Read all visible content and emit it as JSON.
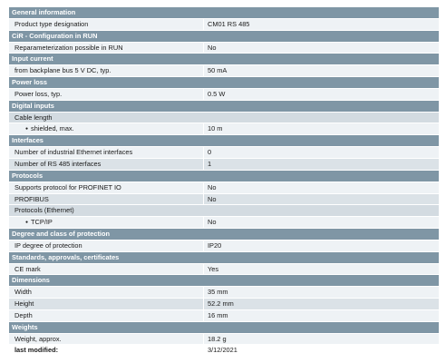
{
  "sections": [
    {
      "title": "General information",
      "rows": [
        {
          "label": "Product type designation",
          "value": "CM01 RS 485"
        }
      ]
    },
    {
      "title": "CiR - Configuration in RUN",
      "rows": [
        {
          "label": "Reparameterization possible in RUN",
          "value": "No"
        }
      ]
    },
    {
      "title": "Input current",
      "rows": [
        {
          "label": "from backplane bus 5 V DC, typ.",
          "value": "50 mA"
        }
      ]
    },
    {
      "title": "Power loss",
      "rows": [
        {
          "label": "Power loss, typ.",
          "value": "0.5 W"
        }
      ]
    },
    {
      "title": "Digital inputs",
      "rows": [
        {
          "label": "Cable length",
          "value": ""
        },
        {
          "label": "shielded, max.",
          "value": "10 m"
        }
      ]
    },
    {
      "title": "Interfaces",
      "rows": [
        {
          "label": "Number of industrial Ethernet interfaces",
          "value": "0"
        },
        {
          "label": "Number of RS 485 interfaces",
          "value": "1"
        }
      ]
    },
    {
      "title": "Protocols",
      "rows": [
        {
          "label": "Supports protocol for PROFINET IO",
          "value": "No"
        },
        {
          "label": "PROFIBUS",
          "value": "No"
        },
        {
          "label": "Protocols (Ethernet)",
          "value": ""
        },
        {
          "label": "TCP/IP",
          "value": "No"
        }
      ]
    },
    {
      "title": "Degree and class of protection",
      "rows": [
        {
          "label": "IP degree of protection",
          "value": "IP20"
        }
      ]
    },
    {
      "title": "Standards, approvals, certificates",
      "rows": [
        {
          "label": "CE mark",
          "value": "Yes"
        }
      ]
    },
    {
      "title": "Dimensions",
      "rows": [
        {
          "label": "Width",
          "value": "35 mm"
        },
        {
          "label": "Height",
          "value": "52.2 mm"
        },
        {
          "label": "Depth",
          "value": "16 mm"
        }
      ]
    },
    {
      "title": "Weights",
      "rows": [
        {
          "label": "Weight, approx.",
          "value": "18.2 g"
        }
      ]
    }
  ],
  "footer": {
    "label": "last modified:",
    "value": "3/12/2021"
  }
}
